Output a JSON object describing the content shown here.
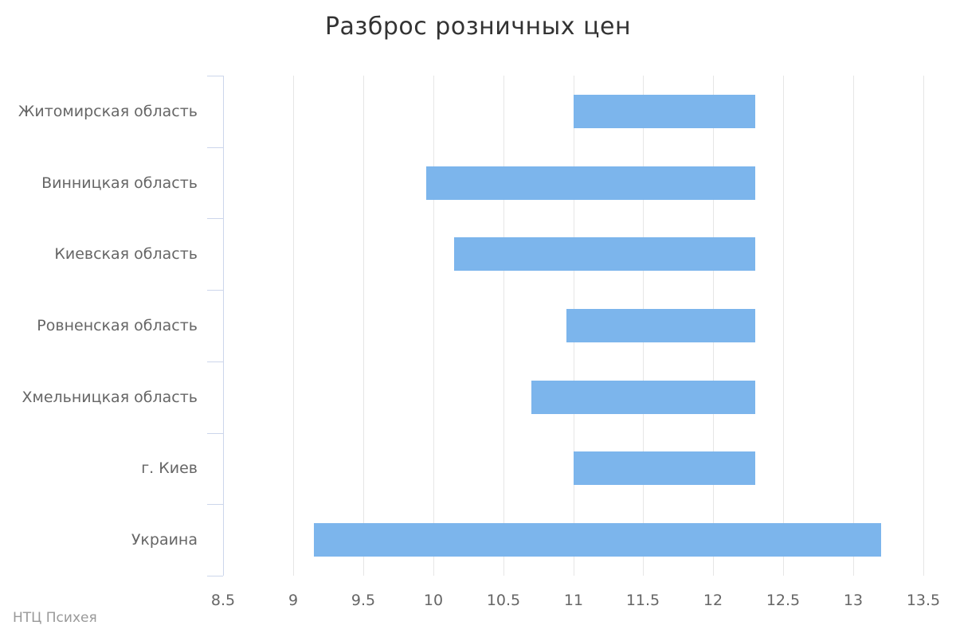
{
  "colors": {
    "bar": "#7cb5ec",
    "category_axis_line": "#ccd6eb",
    "gridline": "#e6e6e6",
    "title_text": "#333333",
    "axis_label_text": "#666666",
    "credits_text": "#999999"
  },
  "chart_data": {
    "type": "bar",
    "subtype": "columnrange-horizontal",
    "title": "Разброс розничных цен",
    "credits": "НТЦ Психея",
    "categories": [
      "Житомирская область",
      "Винницкая область",
      "Киевская область",
      "Ровненская область",
      "Хмельницкая область",
      "г. Киев",
      "Украина"
    ],
    "series": [
      {
        "name": "Разброс розничных цен",
        "ranges": [
          {
            "low": 11.0,
            "high": 12.3
          },
          {
            "low": 9.95,
            "high": 12.3
          },
          {
            "low": 10.15,
            "high": 12.3
          },
          {
            "low": 10.95,
            "high": 12.3
          },
          {
            "low": 10.7,
            "high": 12.3
          },
          {
            "low": 11.0,
            "high": 12.3
          },
          {
            "low": 9.15,
            "high": 13.2
          }
        ]
      }
    ],
    "xlabel": "",
    "ylabel": "",
    "xlim": [
      8.5,
      13.5
    ],
    "x_tick_interval": 0.5,
    "x_tick_labels": [
      "8.5",
      "9",
      "9.5",
      "10",
      "10.5",
      "11",
      "11.5",
      "12",
      "12.5",
      "13",
      "13.5"
    ],
    "grid": true,
    "legend": false
  }
}
